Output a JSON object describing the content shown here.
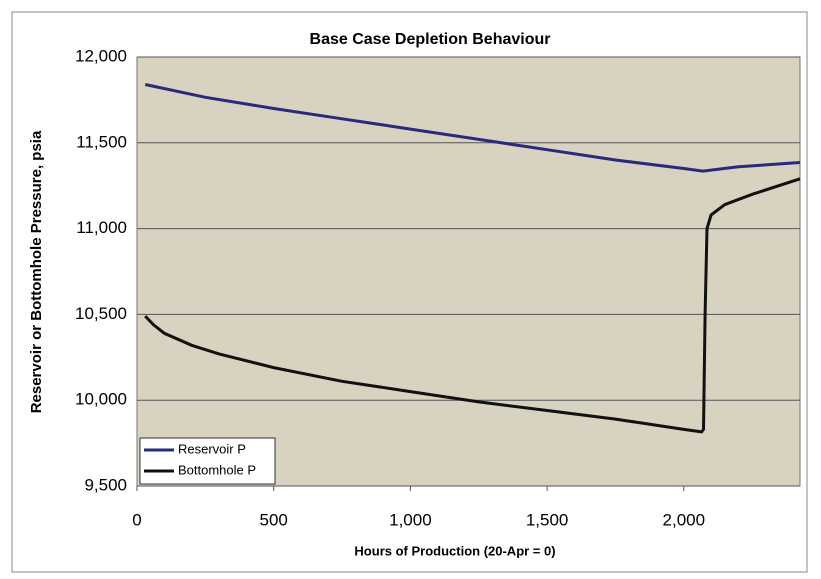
{
  "chart_data": {
    "type": "line",
    "title": "Base Case Depletion Behaviour",
    "x_label": "Hours of Production (20-Apr = 0)",
    "y_label": "Reservoir or Bottomhole Pressure, psia",
    "xlim": [
      0,
      2425
    ],
    "ylim": [
      9500,
      12000
    ],
    "xticks": [
      0,
      500,
      {
        "value": 1000,
        "label": "1,000"
      },
      {
        "value": 1500,
        "label": "1,500"
      },
      {
        "value": 2000,
        "label": "2,000"
      }
    ],
    "yticks": [
      {
        "value": 9500,
        "label": "9,500"
      },
      {
        "value": 10000,
        "label": "10,000"
      },
      {
        "value": 10500,
        "label": "10,500"
      },
      {
        "value": 11000,
        "label": "11,000"
      },
      {
        "value": 11500,
        "label": "11,500"
      },
      {
        "value": 12000,
        "label": "12,000"
      }
    ],
    "grid": true,
    "legend": "lower left",
    "series": [
      {
        "name": "Reservoir P",
        "color": "#2a2a7a",
        "x": [
          30,
          250,
          500,
          750,
          1000,
          1250,
          1500,
          1750,
          2000,
          2070,
          2200,
          2425
        ],
        "values": [
          11840,
          11765,
          11700,
          11640,
          11580,
          11520,
          11460,
          11400,
          11350,
          11335,
          11360,
          11385
        ]
      },
      {
        "name": "Bottomhole P",
        "color": "#111111",
        "x": [
          30,
          60,
          100,
          200,
          300,
          500,
          750,
          1000,
          1250,
          1500,
          1750,
          2000,
          2065,
          2072,
          2078,
          2085,
          2100,
          2150,
          2250,
          2425
        ],
        "values": [
          10490,
          10440,
          10390,
          10320,
          10270,
          10190,
          10110,
          10050,
          9990,
          9940,
          9890,
          9830,
          9815,
          9830,
          10500,
          11000,
          11080,
          11140,
          11200,
          11290
        ]
      }
    ]
  }
}
